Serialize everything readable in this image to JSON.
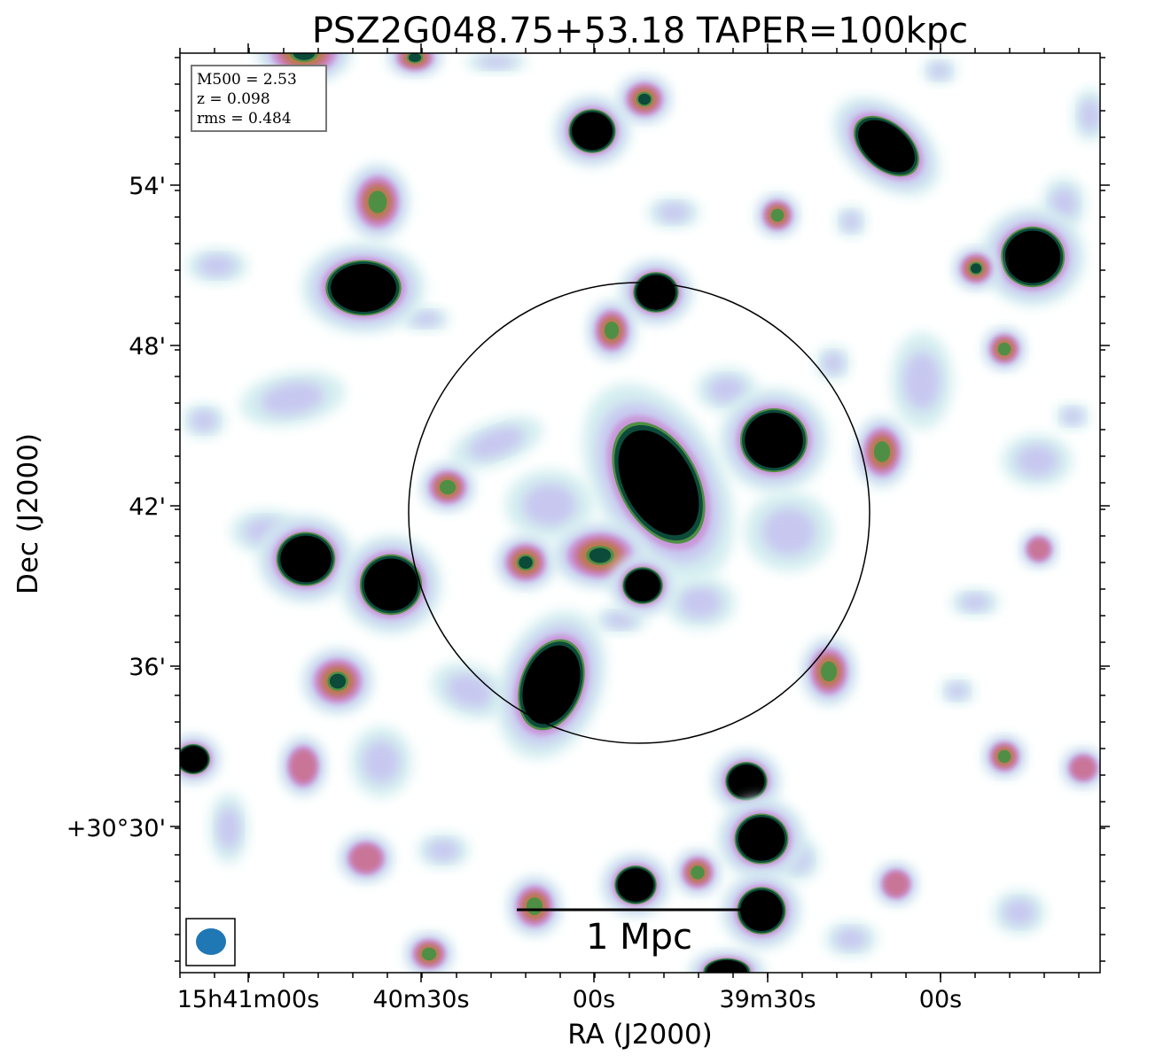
{
  "chart_data": {
    "type": "heatmap",
    "title": "PSZ2G048.75+53.18 TAPER=100kpc",
    "xlabel": "RA (J2000)",
    "ylabel": "Dec (J2000)",
    "x_ticks": [
      "15h41m00s",
      "40m30s",
      "00s",
      "39m30s",
      "00s"
    ],
    "y_ticks": [
      "54'",
      "48'",
      "42'",
      "36'",
      "+30°30'"
    ],
    "info_box": [
      "M500 = 2.53",
      "z = 0.098",
      "rms = 0.484"
    ],
    "scale_bar_label": "1 Mpc",
    "colormap": [
      "#ffffff",
      "#d4eef0",
      "#c7c7f0",
      "#c996d8",
      "#c97598",
      "#b77a4c",
      "#4f8f45",
      "#0c4a3a",
      "#000000"
    ],
    "overlays": [
      "circle",
      "beam-ellipse",
      "scale-bar"
    ],
    "beam_color": "#1f77b4",
    "grid": false
  }
}
